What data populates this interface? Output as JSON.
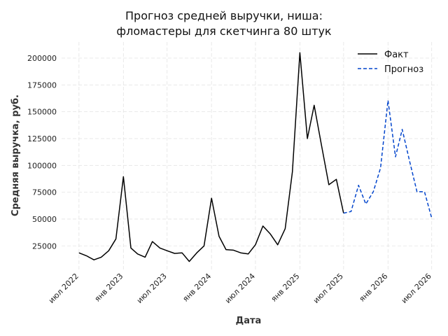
{
  "chart_data": {
    "type": "line",
    "title_lines": [
      "Прогноз средней выручки, ниша:",
      "фломастеры для скетчинга 80 штук"
    ],
    "xlabel": "Дата",
    "ylabel": "Средняя выручка, руб.",
    "ylim": [
      3000,
      215000
    ],
    "xlim": [
      "2022-04-20",
      "2026-07-25"
    ],
    "y_ticks": [
      25000,
      50000,
      75000,
      100000,
      125000,
      150000,
      175000,
      200000
    ],
    "y_tick_labels": [
      "25000",
      "50000",
      "75000",
      "100000",
      "125000",
      "150000",
      "175000",
      "200000"
    ],
    "x_ticks": [
      "2022-07-01",
      "2023-01-01",
      "2023-07-01",
      "2024-01-01",
      "2024-07-01",
      "2025-01-01",
      "2025-07-01",
      "2026-01-01",
      "2026-07-01"
    ],
    "x_tick_labels": [
      "июл 2022",
      "янв 2023",
      "июл 2023",
      "янв 2024",
      "июл 2024",
      "янв 2025",
      "июл 2025",
      "янв 2026",
      "июл 2026"
    ],
    "grid": true,
    "legend_position": "top-right",
    "series": [
      {
        "name": "Факт",
        "color": "#000000",
        "dash": "solid",
        "x": [
          "2022-07-01",
          "2022-08-01",
          "2022-09-01",
          "2022-10-01",
          "2022-11-01",
          "2022-12-01",
          "2023-01-01",
          "2023-02-01",
          "2023-03-01",
          "2023-04-01",
          "2023-05-01",
          "2023-06-01",
          "2023-07-01",
          "2023-08-01",
          "2023-09-01",
          "2023-10-01",
          "2023-11-01",
          "2023-12-01",
          "2024-01-01",
          "2024-02-01",
          "2024-03-01",
          "2024-04-01",
          "2024-05-01",
          "2024-06-01",
          "2024-07-01",
          "2024-08-01",
          "2024-09-01",
          "2024-10-01",
          "2024-11-01",
          "2024-12-01",
          "2025-01-01",
          "2025-02-01",
          "2025-03-01",
          "2025-04-01",
          "2025-05-01",
          "2025-06-01",
          "2025-07-01"
        ],
        "values": [
          18500,
          15800,
          12000,
          14500,
          20500,
          31500,
          89500,
          23000,
          17500,
          14500,
          29000,
          23000,
          20500,
          18000,
          18500,
          10500,
          18500,
          25000,
          69500,
          34000,
          21500,
          21000,
          18500,
          17500,
          26000,
          43500,
          36000,
          26000,
          41000,
          94000,
          205000,
          125000,
          156000,
          118000,
          82000,
          87000,
          55500
        ]
      },
      {
        "name": "Прогноз",
        "color": "#0044cc",
        "dash": "dashed",
        "x": [
          "2025-07-01",
          "2025-08-01",
          "2025-09-01",
          "2025-10-01",
          "2025-11-01",
          "2025-12-01",
          "2026-01-01",
          "2026-02-01",
          "2026-03-01",
          "2026-04-01",
          "2026-05-01",
          "2026-06-01",
          "2026-07-01"
        ],
        "values": [
          55500,
          57000,
          81500,
          64000,
          75500,
          97500,
          160500,
          108000,
          133500,
          103500,
          75500,
          75500,
          51000
        ]
      }
    ]
  }
}
